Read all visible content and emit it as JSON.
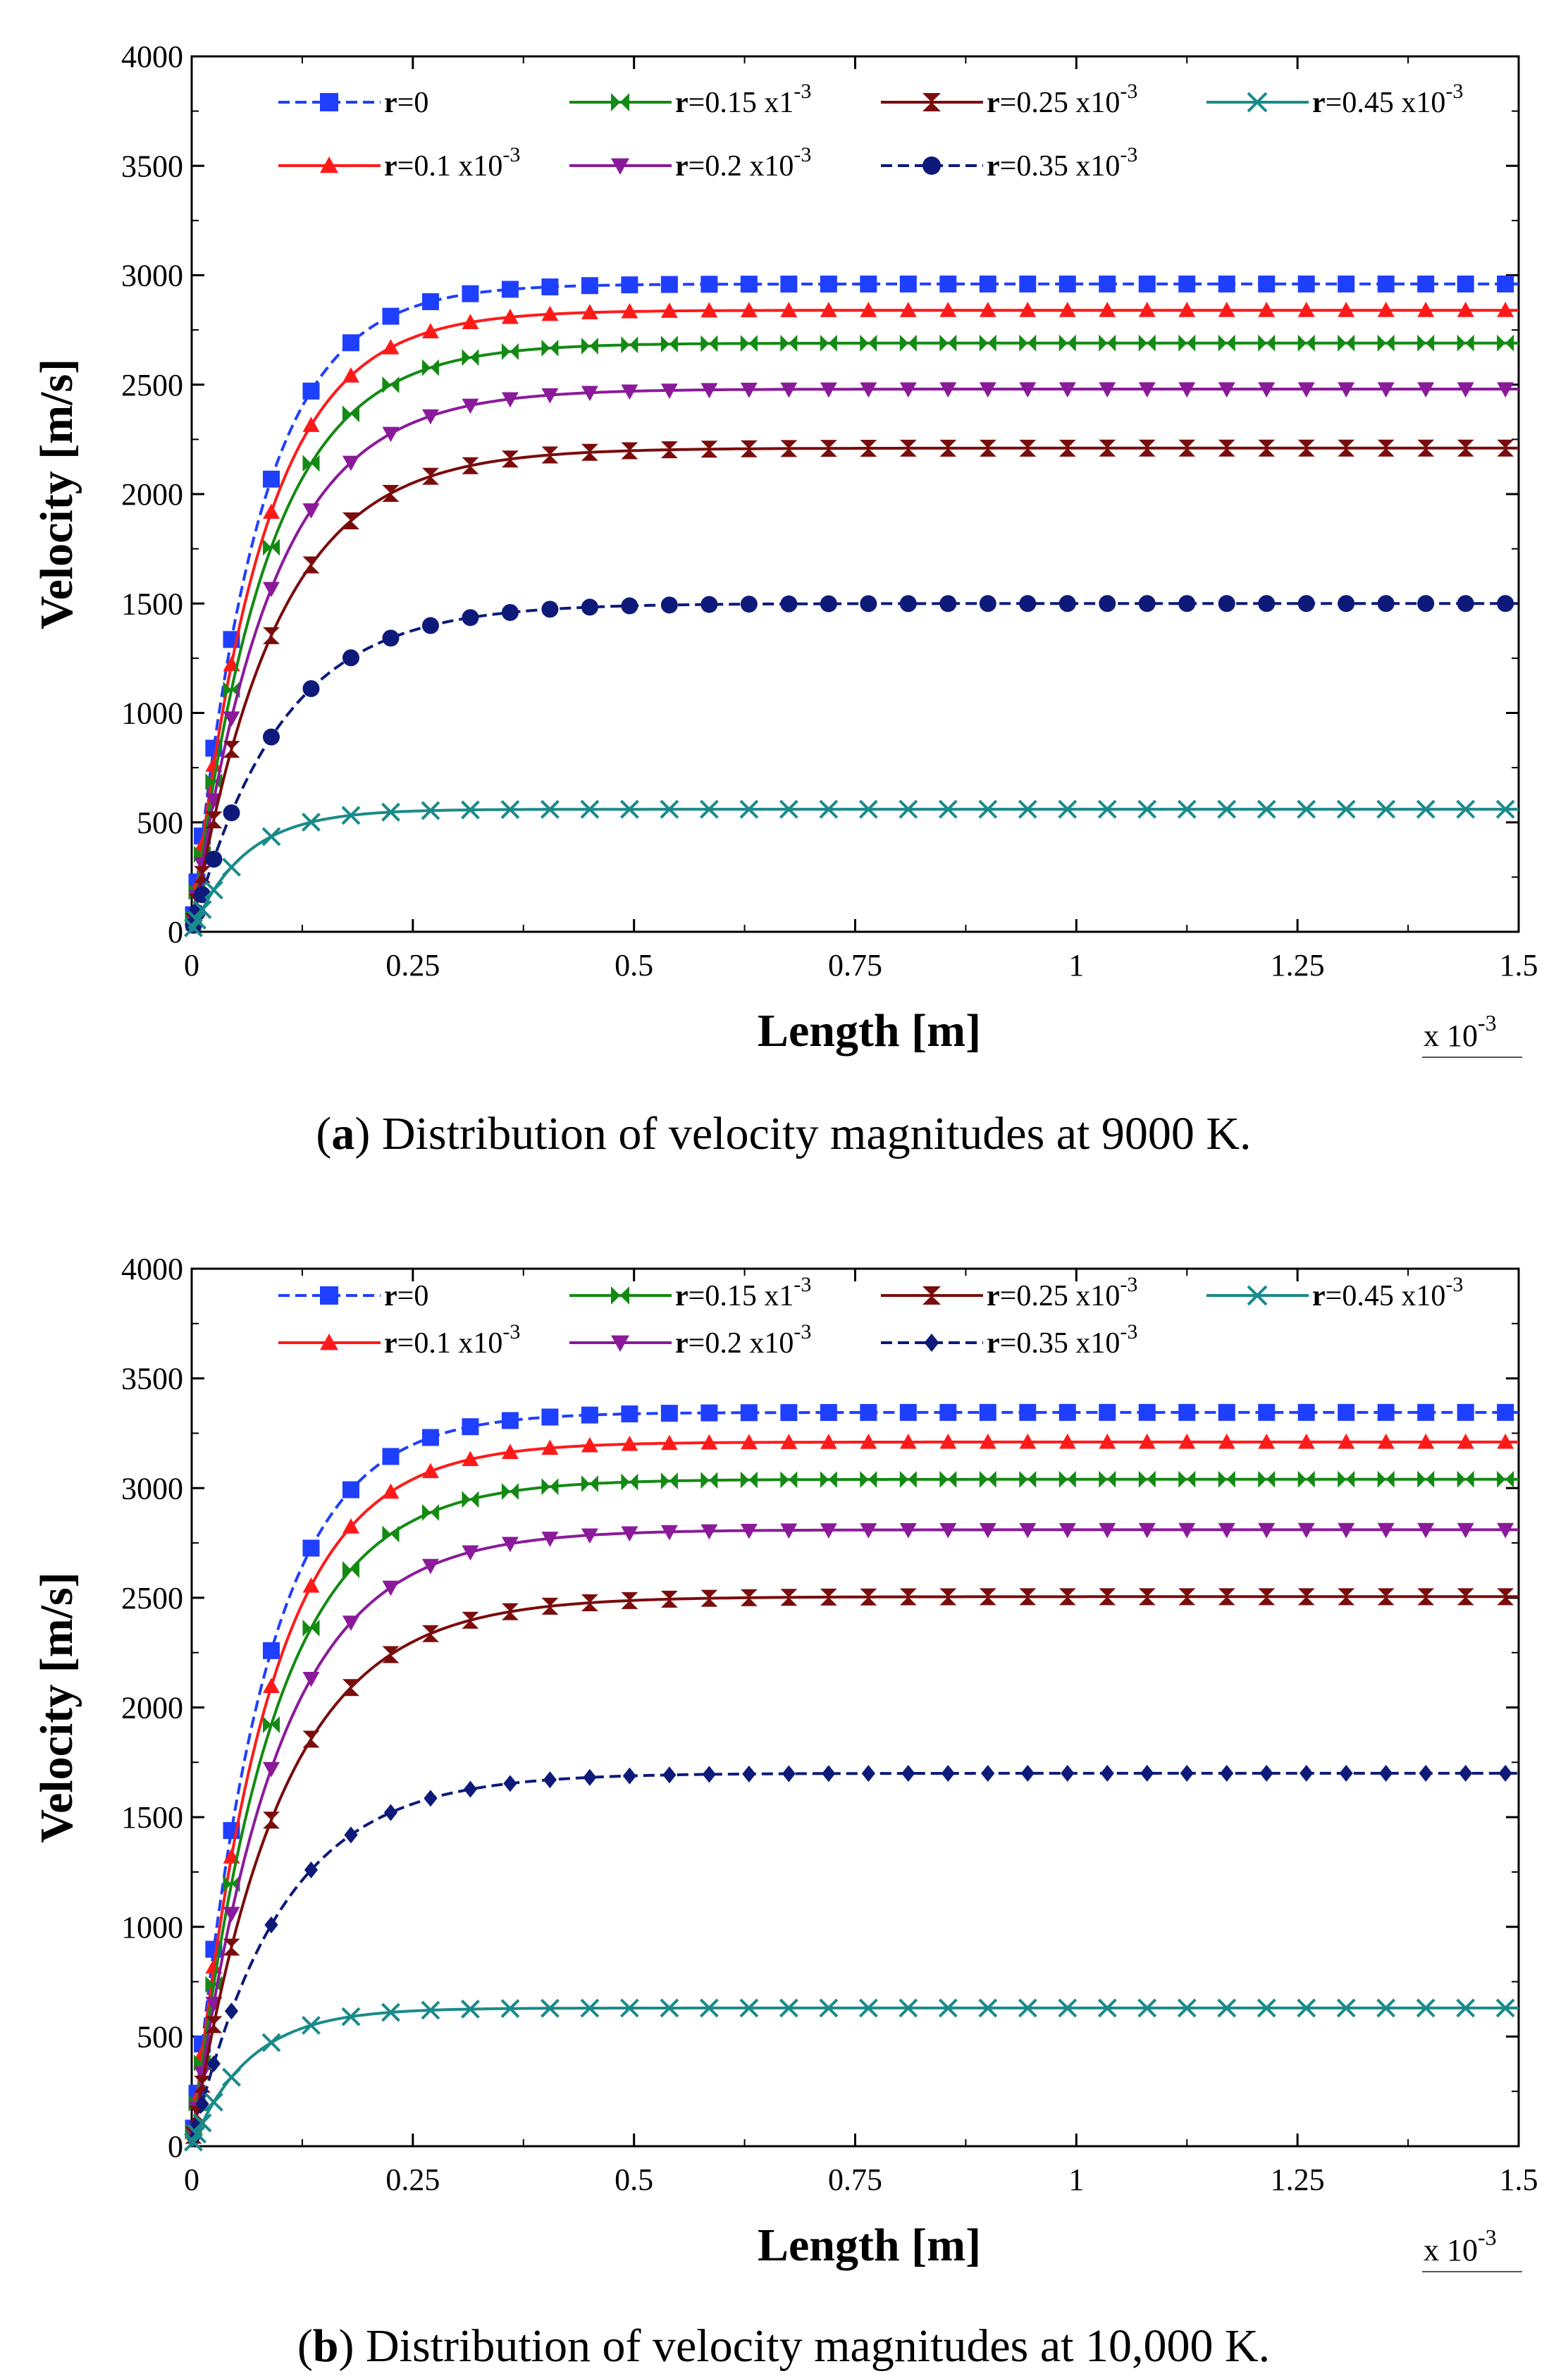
{
  "chart_data": [
    {
      "type": "line",
      "caption_label": "a",
      "caption_text": "Distribution of velocity magnitudes at 9000 K.",
      "xlabel": "Length [m]",
      "ylabel": "Velocity [m/s]",
      "x_multiplier": "x 10",
      "x_multiplier_exp": "-3",
      "xlim": [
        0,
        1.5
      ],
      "ylim": [
        0,
        4000
      ],
      "xticks": [
        "0",
        "0.25",
        "0.5",
        "0.75",
        "1",
        "1.25",
        "1.5"
      ],
      "yticks": [
        "0",
        "500",
        "1000",
        "1500",
        "2000",
        "2500",
        "3000",
        "3500",
        "4000"
      ],
      "series": [
        {
          "name": "r=0",
          "prefix": "r",
          "label": "=0",
          "exp": "",
          "color": "#1f3fff",
          "marker": "square",
          "dash": true,
          "plateau": 2960,
          "tau": 0.075
        },
        {
          "name": "r=0.1 x10-3",
          "prefix": "r",
          "label": "=0.1 x10",
          "exp": "-3",
          "color": "#ff1a1a",
          "marker": "triangle-up",
          "dash": false,
          "plateau": 2840,
          "tau": 0.08
        },
        {
          "name": "r=0.15 x1-3",
          "prefix": "r",
          "label": "=0.15 x1",
          "exp": "-3",
          "color": "#138a13",
          "marker": "bowtie",
          "dash": false,
          "plateau": 2690,
          "tau": 0.085
        },
        {
          "name": "r=0.2 x10-3",
          "prefix": "r",
          "label": "=0.2 x10",
          "exp": "-3",
          "color": "#8b1a9b",
          "marker": "triangle-down",
          "dash": false,
          "plateau": 2480,
          "tau": 0.09
        },
        {
          "name": "r=0.25 x10-3",
          "prefix": "r",
          "label": "=0.25 x10",
          "exp": "-3",
          "color": "#7a0c0c",
          "marker": "hourglass",
          "dash": false,
          "plateau": 2210,
          "tau": 0.095
        },
        {
          "name": "r=0.35 x10-3",
          "prefix": "r",
          "label": "=0.35 x10",
          "exp": "-3",
          "color": "#0d1a7a",
          "marker": "circle",
          "dash": true,
          "plateau": 1500,
          "tau": 0.1
        },
        {
          "name": "r=0.45 x10-3",
          "prefix": "r",
          "label": "=0.45 x10",
          "exp": "-3",
          "color": "#1a8a8a",
          "marker": "x",
          "dash": false,
          "plateau": 560,
          "tau": 0.06
        }
      ]
    },
    {
      "type": "line",
      "caption_label": "b",
      "caption_text": "Distribution of velocity magnitudes at 10,000 K.",
      "xlabel": "Length [m]",
      "ylabel": "Velocity [m/s]",
      "x_multiplier": "x 10",
      "x_multiplier_exp": "-3",
      "xlim": [
        0,
        1.5
      ],
      "ylim": [
        0,
        4000
      ],
      "xticks": [
        "0",
        "0.25",
        "0.5",
        "0.75",
        "1",
        "1.25",
        "1.5"
      ],
      "yticks": [
        "0",
        "500",
        "1000",
        "1500",
        "2000",
        "2500",
        "3000",
        "3500",
        "4000"
      ],
      "series": [
        {
          "name": "r=0",
          "prefix": "r",
          "label": "=0",
          "exp": "",
          "color": "#1f3fff",
          "marker": "square",
          "dash": true,
          "plateau": 3345,
          "tau": 0.08
        },
        {
          "name": "r=0.1 x10-3",
          "prefix": "r",
          "label": "=0.1 x10",
          "exp": "-3",
          "color": "#ff1a1a",
          "marker": "triangle-up",
          "dash": false,
          "plateau": 3210,
          "tau": 0.085
        },
        {
          "name": "r=0.15 x1-3",
          "prefix": "r",
          "label": "=0.15 x1",
          "exp": "-3",
          "color": "#138a13",
          "marker": "bowtie",
          "dash": false,
          "plateau": 3040,
          "tau": 0.09
        },
        {
          "name": "r=0.2 x10-3",
          "prefix": "r",
          "label": "=0.2 x10",
          "exp": "-3",
          "color": "#8b1a9b",
          "marker": "triangle-down",
          "dash": false,
          "plateau": 2810,
          "tau": 0.095
        },
        {
          "name": "r=0.25 x10-3",
          "prefix": "r",
          "label": "=0.25 x10",
          "exp": "-3",
          "color": "#7a0c0c",
          "marker": "hourglass",
          "dash": false,
          "plateau": 2505,
          "tau": 0.1
        },
        {
          "name": "r=0.35 x10-3",
          "prefix": "r",
          "label": "=0.35 x10",
          "exp": "-3",
          "color": "#0d1a7a",
          "marker": "diamond",
          "dash": true,
          "plateau": 1700,
          "tau": 0.1
        },
        {
          "name": "r=0.45 x10-3",
          "prefix": "r",
          "label": "=0.45 x10",
          "exp": "-3",
          "color": "#1a8a8a",
          "marker": "x",
          "dash": false,
          "plateau": 630,
          "tau": 0.065
        }
      ]
    }
  ]
}
